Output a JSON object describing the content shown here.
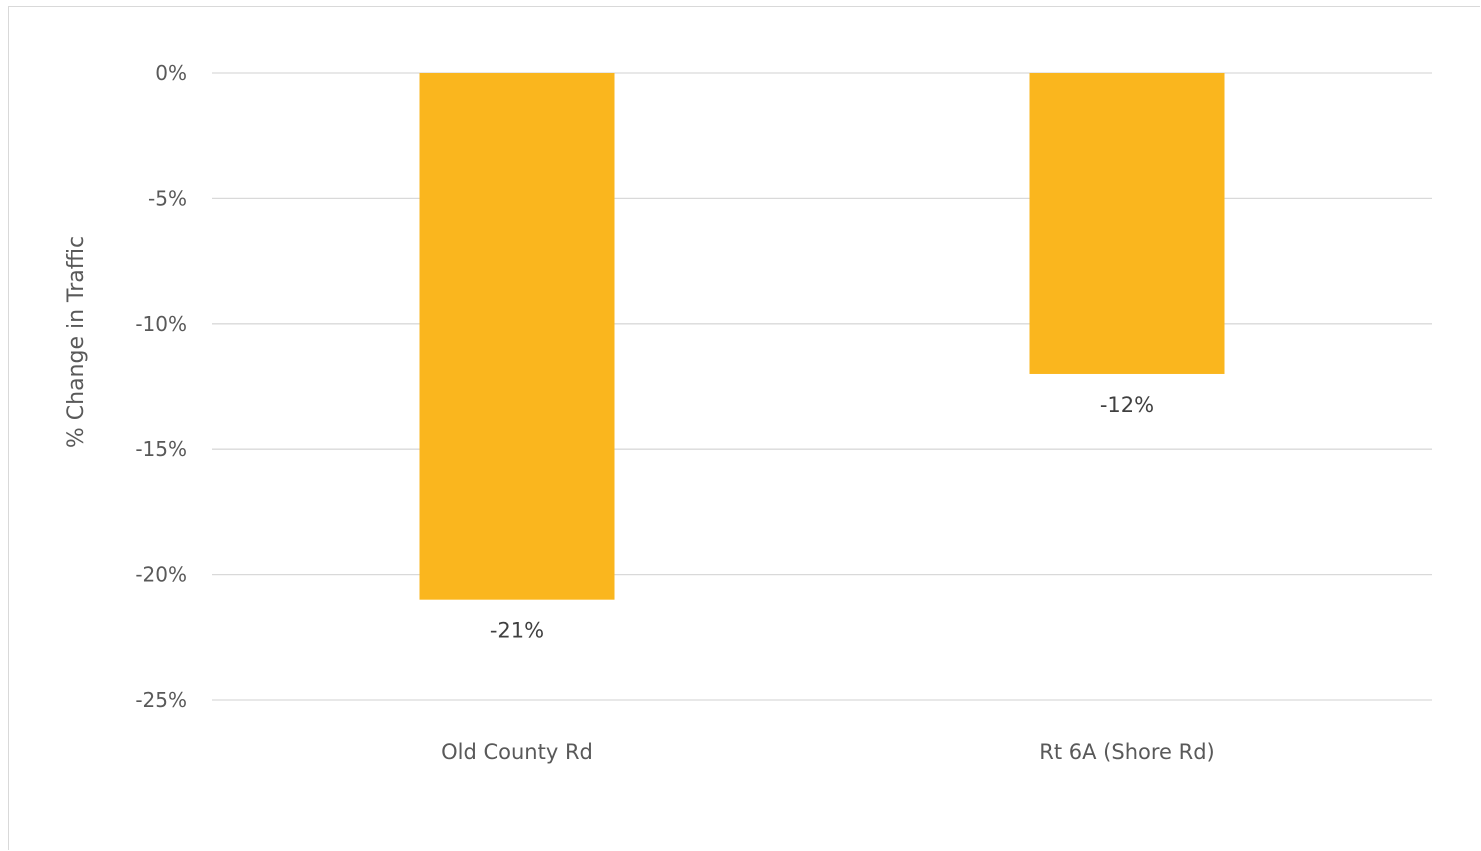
{
  "chart_data": {
    "type": "bar",
    "categories": [
      "Old County Rd",
      "Rt 6A (Shore Rd)"
    ],
    "values": [
      -21,
      -12
    ],
    "data_labels": [
      "-21%",
      "-12%"
    ],
    "ylabel": "% Change in Traffic",
    "xlabel": "",
    "ylim": [
      -25,
      0
    ],
    "yticks": [
      0,
      -5,
      -10,
      -15,
      -20,
      -25
    ],
    "ytick_labels": [
      "0%",
      "-5%",
      "-10%",
      "-15%",
      "-20%",
      "-25%"
    ],
    "grid": true,
    "legend": "none",
    "bar_color": "#FAB61E",
    "grid_color": "#D9D9D9"
  }
}
